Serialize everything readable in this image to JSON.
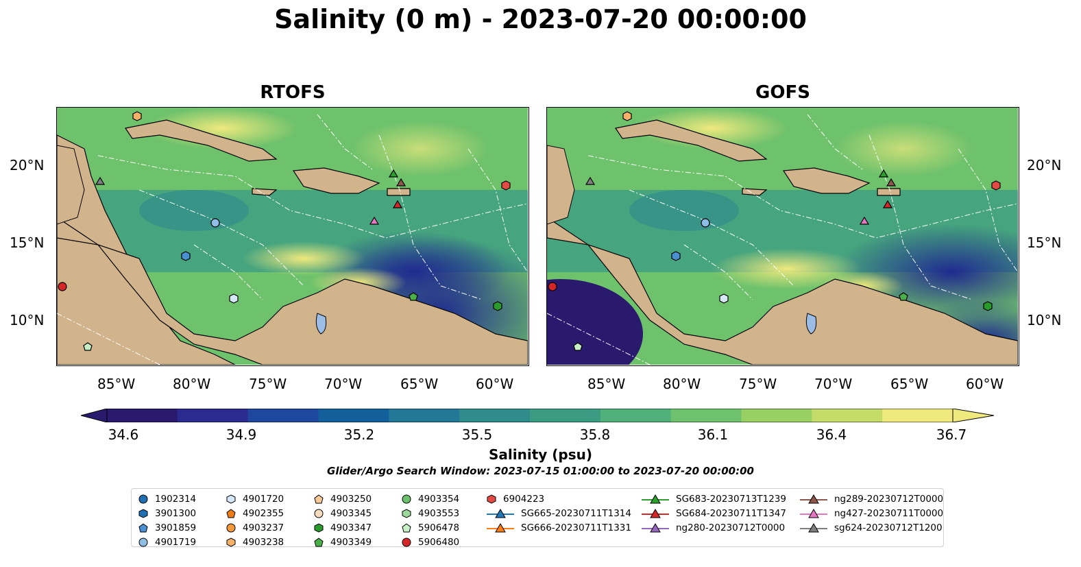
{
  "title": "Salinity (0 m) - 2023-07-20 00:00:00",
  "panels": [
    {
      "title": "RTOFS"
    },
    {
      "title": "GOFS"
    }
  ],
  "lon_labels": [
    "85°W",
    "80°W",
    "75°W",
    "70°W",
    "65°W",
    "60°W"
  ],
  "lat_labels": [
    "20°N",
    "15°N",
    "10°N"
  ],
  "colorbar": {
    "ticks": [
      "34.6",
      "34.9",
      "35.2",
      "35.5",
      "35.8",
      "36.1",
      "36.4",
      "36.7"
    ],
    "label": "Salinity (psu)",
    "colors": [
      "#2a1a6e",
      "#2b2b8f",
      "#1f47a0",
      "#135f9c",
      "#237898",
      "#2f8b8c",
      "#3c9c83",
      "#4fb07a",
      "#6ec26d",
      "#98d063",
      "#c6dc6a",
      "#efe97e"
    ]
  },
  "search_window": "Glider/Argo Search Window: 2023-07-15 01:00:00 to 2023-07-20 00:00:00",
  "legend": [
    [
      {
        "label": "1902314",
        "marker": "circle",
        "color": "#1f6fb2"
      },
      {
        "label": "3901300",
        "marker": "hexagon",
        "color": "#1f6fb2"
      },
      {
        "label": "3901859",
        "marker": "pentagon",
        "color": "#4a90d0"
      },
      {
        "label": "4901719",
        "marker": "circle",
        "color": "#8fbde6"
      }
    ],
    [
      {
        "label": "4901720",
        "marker": "hexagon",
        "color": "#d6e8f7"
      },
      {
        "label": "4902355",
        "marker": "pentagon",
        "color": "#f07d14"
      },
      {
        "label": "4903237",
        "marker": "circle",
        "color": "#f59a3c"
      },
      {
        "label": "4903238",
        "marker": "hexagon",
        "color": "#f7b06a"
      }
    ],
    [
      {
        "label": "4903250",
        "marker": "pentagon",
        "color": "#f8c997"
      },
      {
        "label": "4903345",
        "marker": "circle",
        "color": "#fbdcbc"
      },
      {
        "label": "4903347",
        "marker": "hexagon",
        "color": "#2a9a2a"
      },
      {
        "label": "4903349",
        "marker": "pentagon",
        "color": "#49b04a"
      }
    ],
    [
      {
        "label": "4903354",
        "marker": "circle",
        "color": "#6cc26c"
      },
      {
        "label": "4903553",
        "marker": "hexagon",
        "color": "#9bd99a"
      },
      {
        "label": "5906478",
        "marker": "pentagon",
        "color": "#c7efc6"
      },
      {
        "label": "5906480",
        "marker": "circle",
        "color": "#d62728"
      }
    ],
    [
      {
        "label": "6904223",
        "marker": "hexagon",
        "color": "#e34a43"
      },
      {
        "label": "SG665-20230711T1314",
        "marker": "triangle",
        "color": "#1f77b4",
        "line": true
      },
      {
        "label": "SG666-20230711T1331",
        "marker": "triangle",
        "color": "#ff7f0e",
        "line": true
      }
    ],
    [
      {
        "label": "SG683-20230713T1239",
        "marker": "triangle",
        "color": "#2ca02c",
        "line": true
      },
      {
        "label": "SG684-20230711T1347",
        "marker": "triangle",
        "color": "#d62728",
        "line": true
      },
      {
        "label": "ng280-20230712T0000",
        "marker": "triangle",
        "color": "#9467bd",
        "line": true
      }
    ],
    [
      {
        "label": "ng289-20230712T0000",
        "marker": "triangle",
        "color": "#8c564b",
        "line": true
      },
      {
        "label": "ng427-20230711T0000",
        "marker": "triangle",
        "color": "#e377c2",
        "line": true
      },
      {
        "label": "sg624-20230712T1200",
        "marker": "triangle",
        "color": "#7f7f7f",
        "line": true
      }
    ]
  ]
}
